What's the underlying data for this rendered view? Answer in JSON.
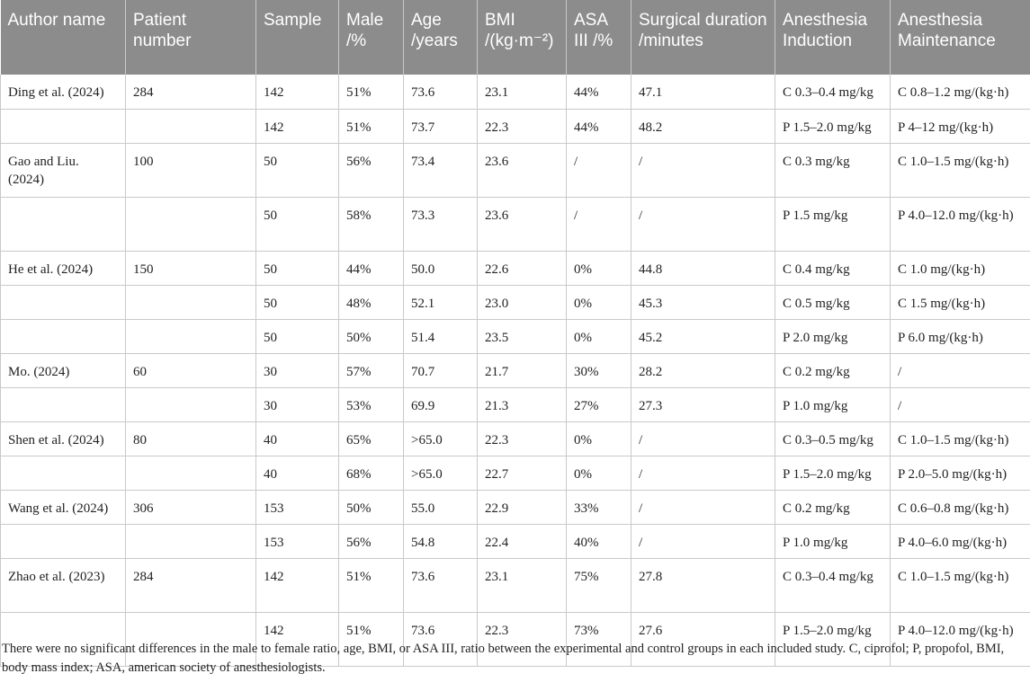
{
  "table": {
    "headers": [
      "Author name",
      "Patient number",
      "Sample",
      "Male /%",
      "Age /years",
      "BMI /(kg·m⁻²)",
      "ASA III /%",
      "Surgical duration /minutes",
      "Anesthesia Induction",
      "Anesthesia Maintenance"
    ],
    "rows": [
      [
        "Ding et al. (2024)",
        "284",
        "142",
        "51%",
        "73.6",
        "23.1",
        "44%",
        "47.1",
        "C 0.3–0.4 mg/kg",
        "C 0.8–1.2 mg/(kg·h)"
      ],
      [
        "",
        "",
        "142",
        "51%",
        "73.7",
        "22.3",
        "44%",
        "48.2",
        "P 1.5–2.0 mg/kg",
        "P 4–12 mg/(kg·h)"
      ],
      [
        "Gao and Liu. (2024)",
        "100",
        "50",
        "56%",
        "73.4",
        "23.6",
        "/",
        "/",
        "C 0.3 mg/kg",
        "C 1.0–1.5 mg/(kg·h)"
      ],
      [
        "",
        "",
        "50",
        "58%",
        "73.3",
        "23.6",
        "/",
        "/",
        "P 1.5 mg/kg",
        "P 4.0–12.0 mg/(kg·h)"
      ],
      [
        "He et al. (2024)",
        "150",
        "50",
        "44%",
        "50.0",
        "22.6",
        "0%",
        "44.8",
        "C 0.4 mg/kg",
        "C 1.0 mg/(kg·h)"
      ],
      [
        "",
        "",
        "50",
        "48%",
        "52.1",
        "23.0",
        "0%",
        "45.3",
        "C 0.5 mg/kg",
        "C 1.5 mg/(kg·h)"
      ],
      [
        "",
        "",
        "50",
        "50%",
        "51.4",
        "23.5",
        "0%",
        "45.2",
        "P 2.0 mg/kg",
        "P 6.0 mg/(kg·h)"
      ],
      [
        "Mo. (2024)",
        "60",
        "30",
        "57%",
        "70.7",
        "21.7",
        "30%",
        "28.2",
        "C 0.2 mg/kg",
        "/"
      ],
      [
        "",
        "",
        "30",
        "53%",
        "69.9",
        "21.3",
        "27%",
        "27.3",
        "P 1.0 mg/kg",
        "/"
      ],
      [
        "Shen et al. (2024)",
        "80",
        "40",
        "65%",
        ">65.0",
        "22.3",
        "0%",
        "/",
        "C 0.3–0.5 mg/kg",
        "C 1.0–1.5 mg/(kg·h)"
      ],
      [
        "",
        "",
        "40",
        "68%",
        ">65.0",
        "22.7",
        "0%",
        "/",
        "P 1.5–2.0 mg/kg",
        "P 2.0–5.0 mg/(kg·h)"
      ],
      [
        "Wang et al. (2024)",
        "306",
        "153",
        "50%",
        "55.0",
        "22.9",
        "33%",
        "/",
        "C 0.2 mg/kg",
        "C 0.6–0.8 mg/(kg·h)"
      ],
      [
        "",
        "",
        "153",
        "56%",
        "54.8",
        "22.4",
        "40%",
        "/",
        "P 1.0 mg/kg",
        "P 4.0–6.0 mg/(kg·h)"
      ],
      [
        "Zhao et al. (2023)",
        "284",
        "142",
        "51%",
        "73.6",
        "23.1",
        "75%",
        "27.8",
        "C 0.3–0.4 mg/kg",
        "C 1.0–1.5 mg/(kg·h)"
      ],
      [
        "",
        "",
        "142",
        "51%",
        "73.6",
        "22.3",
        "73%",
        "27.6",
        "P 1.5–2.0 mg/kg",
        "P 4.0–12.0 mg/(kg·h)"
      ]
    ]
  },
  "footnote": "There were no significant differences in the male to female ratio, age, BMI, or ASA III, ratio between the experimental and control groups in each included study. C, ciprofol; P, propofol, BMI, body mass index; ASA, american society of anesthesiologists."
}
